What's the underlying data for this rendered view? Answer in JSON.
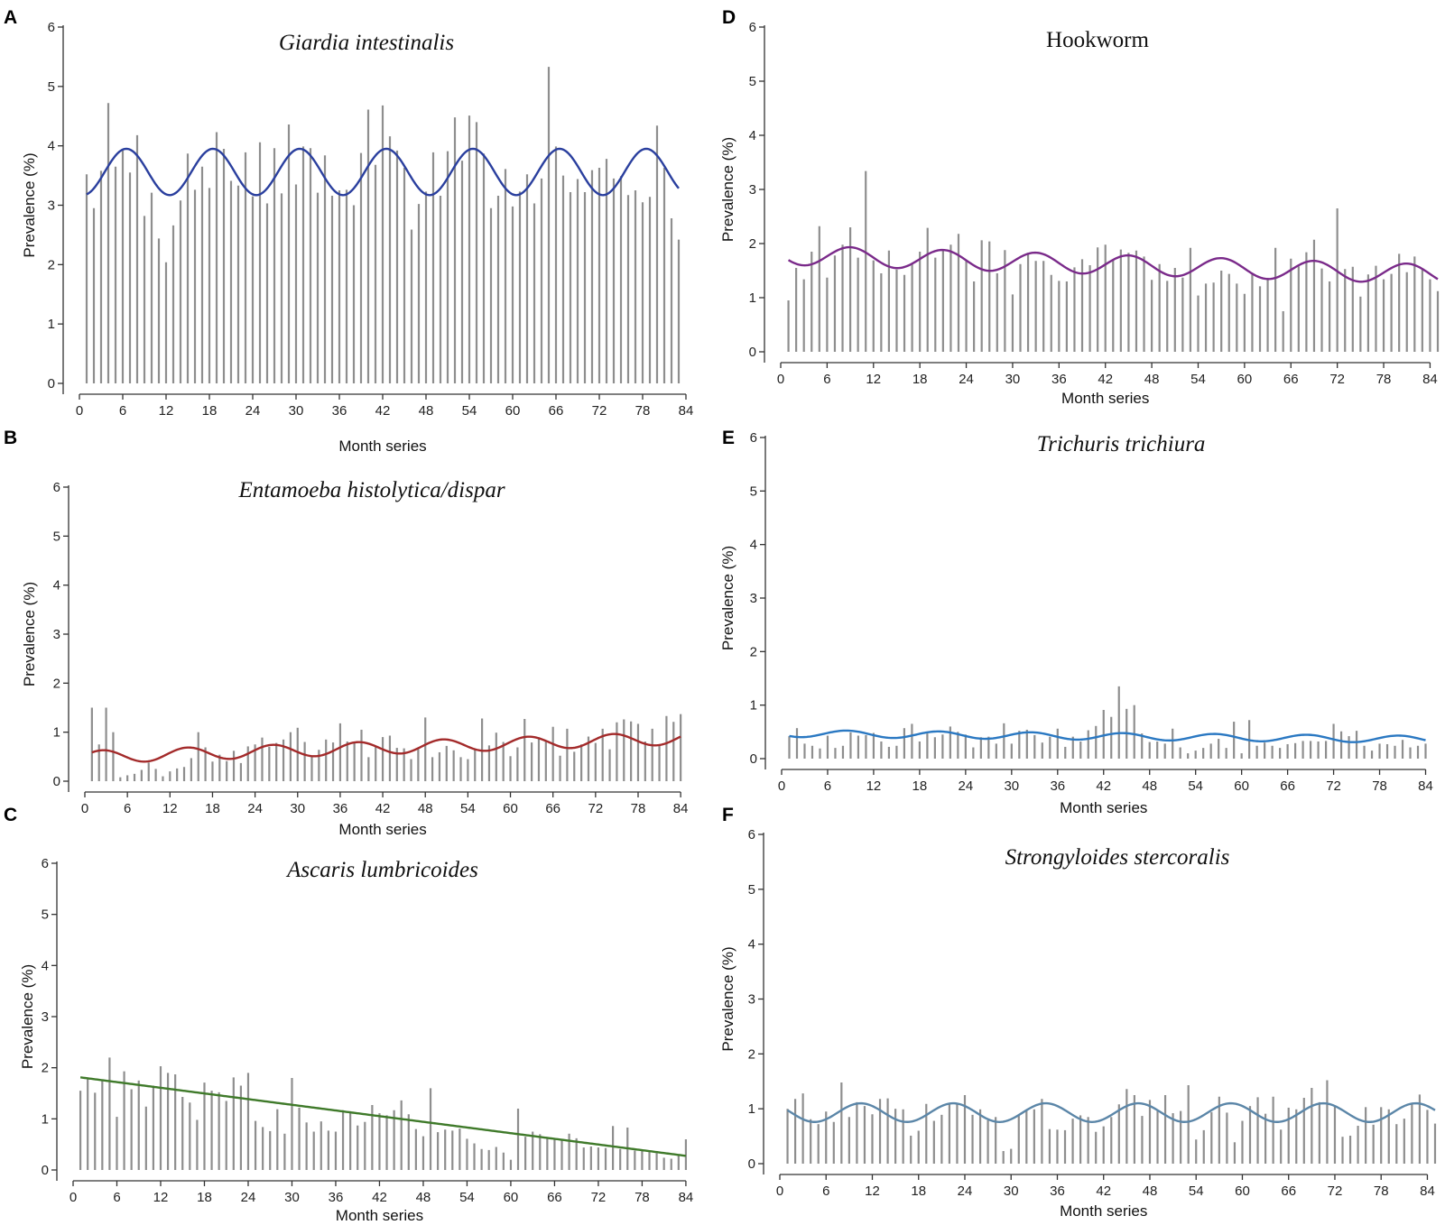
{
  "figure": {
    "panel_letters": [
      "A",
      "B",
      "C",
      "D",
      "E",
      "F"
    ]
  },
  "chart_data": [
    {
      "id": "A",
      "type": "bar",
      "title": "Giardia intestinalis",
      "title_italic": true,
      "xlabel": "Month series",
      "ylabel": "Prevalence (%)",
      "xlim": [
        0,
        85
      ],
      "ylim": [
        0,
        6
      ],
      "xticks": [
        0,
        6,
        12,
        18,
        24,
        30,
        36,
        42,
        48,
        54,
        60,
        66,
        72,
        78,
        84
      ],
      "yticks": [
        0,
        1,
        2,
        3,
        4,
        5,
        6
      ],
      "fit_color": "#2a3f9e",
      "fit": {
        "kind": "seasonal",
        "a": 3.56,
        "b": 0.0,
        "amp": 0.39,
        "period": 12,
        "peak": 6.5
      },
      "values": [
        3.52,
        2.95,
        3.58,
        4.72,
        3.65,
        3.92,
        3.55,
        4.18,
        2.82,
        3.21,
        2.44,
        2.04,
        2.66,
        3.08,
        3.87,
        3.26,
        3.65,
        3.29,
        4.23,
        3.95,
        3.41,
        3.33,
        3.89,
        3.15,
        4.06,
        3.03,
        3.96,
        3.2,
        4.36,
        3.35,
        3.99,
        3.96,
        3.21,
        3.84,
        3.16,
        3.25,
        3.26,
        3.0,
        3.88,
        4.61,
        3.68,
        4.68,
        4.16,
        3.92,
        3.63,
        2.59,
        3.02,
        3.23,
        3.89,
        3.16,
        3.91,
        4.48,
        3.75,
        4.51,
        4.4,
        3.87,
        2.95,
        3.16,
        3.61,
        2.98,
        3.23,
        3.52,
        3.03,
        3.45,
        5.33,
        3.99,
        3.5,
        3.22,
        3.44,
        3.22,
        3.59,
        3.63,
        3.78,
        3.45,
        3.49,
        3.17,
        3.25,
        3.05,
        3.14,
        4.34,
        3.63,
        2.78,
        2.42
      ]
    },
    {
      "id": "B",
      "type": "bar",
      "title": "Entamoeba histolytica/dispar",
      "title_italic": true,
      "xlabel": "Month series",
      "ylabel": "Prevalence (%)",
      "xlim": [
        0,
        85
      ],
      "ylim": [
        0,
        6
      ],
      "xticks": [
        0,
        6,
        12,
        18,
        24,
        30,
        36,
        42,
        48,
        54,
        60,
        66,
        72,
        78,
        84
      ],
      "yticks": [
        0,
        1,
        2,
        3,
        4,
        5,
        6
      ],
      "fit_color": "#a32a2a",
      "fit": {
        "kind": "seasonal",
        "a": 0.49,
        "b": 0.0046,
        "amp": 0.13,
        "period": 12,
        "peak": 2.5
      },
      "values": [
        1.5,
        0.75,
        1.5,
        1.0,
        0.08,
        0.12,
        0.15,
        0.23,
        0.38,
        0.25,
        0.1,
        0.2,
        0.26,
        0.29,
        0.47,
        1.0,
        0.69,
        0.4,
        0.54,
        0.41,
        0.62,
        0.37,
        0.71,
        0.75,
        0.89,
        0.7,
        0.78,
        0.85,
        1.0,
        1.09,
        0.8,
        0.5,
        0.64,
        0.85,
        0.79,
        1.18,
        0.81,
        0.81,
        1.05,
        0.49,
        0.72,
        0.9,
        0.93,
        0.68,
        0.67,
        0.45,
        0.67,
        1.3,
        0.49,
        0.59,
        0.72,
        0.63,
        0.49,
        0.45,
        0.67,
        1.28,
        0.73,
        0.99,
        0.8,
        0.51,
        0.69,
        1.27,
        0.79,
        0.88,
        0.82,
        1.11,
        0.52,
        1.07,
        0.6,
        0.75,
        0.91,
        0.78,
        1.07,
        0.65,
        1.2,
        1.26,
        1.22,
        1.17,
        0.81,
        1.07,
        0.72,
        1.33,
        1.21,
        1.37
      ]
    },
    {
      "id": "C",
      "type": "bar",
      "title": "Ascaris lumbricoides",
      "title_italic": true,
      "xlabel": "Month series",
      "ylabel": "Prevalence (%)",
      "xlim": [
        0,
        85
      ],
      "ylim": [
        0,
        6
      ],
      "xticks": [
        0,
        6,
        12,
        18,
        24,
        30,
        36,
        42,
        48,
        54,
        60,
        66,
        72,
        78,
        84
      ],
      "yticks": [
        0,
        1,
        2,
        3,
        4,
        5,
        6
      ],
      "fit_color": "#3f7a2a",
      "fit": {
        "kind": "linear",
        "a": 1.83,
        "b": -0.0185,
        "amp": 0.0,
        "period": 12,
        "peak": 0
      },
      "values": [
        1.55,
        1.8,
        1.51,
        1.75,
        2.2,
        1.04,
        1.93,
        1.58,
        1.75,
        1.24,
        1.65,
        2.03,
        1.9,
        1.87,
        1.43,
        1.32,
        0.98,
        1.71,
        1.55,
        1.52,
        1.35,
        1.81,
        1.65,
        1.9,
        0.96,
        0.84,
        0.76,
        1.19,
        0.71,
        1.8,
        1.22,
        0.93,
        0.75,
        0.95,
        0.77,
        0.75,
        1.17,
        1.15,
        0.87,
        0.94,
        1.27,
        1.11,
        1.07,
        1.17,
        1.36,
        1.09,
        0.8,
        0.66,
        1.6,
        0.74,
        0.79,
        0.77,
        0.81,
        0.61,
        0.52,
        0.41,
        0.39,
        0.45,
        0.34,
        0.2,
        1.2,
        0.65,
        0.75,
        0.7,
        0.63,
        0.62,
        0.61,
        0.71,
        0.62,
        0.44,
        0.46,
        0.44,
        0.43,
        0.86,
        0.41,
        0.83,
        0.38,
        0.38,
        0.35,
        0.33,
        0.24,
        0.22,
        0.3,
        0.6
      ]
    },
    {
      "id": "D",
      "type": "bar",
      "title": "Hookworm",
      "title_italic": false,
      "xlabel": "Month series",
      "ylabel": "Prevalence (%)",
      "xlim": [
        0,
        85
      ],
      "ylim": [
        0,
        6
      ],
      "xticks": [
        0,
        6,
        12,
        18,
        24,
        30,
        36,
        42,
        48,
        54,
        60,
        66,
        72,
        78,
        84
      ],
      "yticks": [
        0,
        1,
        2,
        3,
        4,
        5,
        6
      ],
      "fit_color": "#7a2a8a",
      "fit": {
        "kind": "seasonal",
        "a": 1.79,
        "b": -0.0042,
        "amp": 0.18,
        "period": 12,
        "peak": 9
      },
      "values": [
        0.95,
        1.55,
        1.34,
        1.85,
        2.32,
        1.37,
        1.78,
        1.98,
        2.3,
        1.74,
        3.34,
        1.69,
        1.45,
        1.87,
        1.52,
        1.42,
        1.62,
        1.85,
        2.29,
        1.74,
        1.87,
        1.98,
        2.18,
        1.69,
        1.3,
        2.06,
        2.04,
        1.45,
        1.88,
        1.06,
        1.62,
        1.83,
        1.68,
        1.68,
        1.42,
        1.31,
        1.3,
        1.56,
        1.71,
        1.6,
        1.93,
        1.98,
        1.7,
        1.89,
        1.83,
        1.87,
        1.76,
        1.33,
        1.62,
        1.31,
        1.55,
        1.37,
        1.92,
        1.04,
        1.26,
        1.28,
        1.5,
        1.44,
        1.26,
        1.07,
        1.43,
        1.21,
        1.34,
        1.92,
        0.75,
        1.72,
        1.58,
        1.84,
        2.07,
        1.54,
        1.3,
        2.65,
        1.53,
        1.57,
        1.02,
        1.43,
        1.59,
        1.34,
        1.44,
        1.81,
        1.47,
        1.76,
        1.52,
        1.34,
        1.12
      ]
    },
    {
      "id": "E",
      "type": "bar",
      "title": "Trichuris trichiura",
      "title_italic": true,
      "xlabel": "Month series",
      "ylabel": "Prevalence (%)",
      "xlim": [
        0,
        85
      ],
      "ylim": [
        0,
        6
      ],
      "xticks": [
        0,
        6,
        12,
        18,
        24,
        30,
        36,
        42,
        48,
        54,
        60,
        66,
        72,
        78,
        84
      ],
      "yticks": [
        0,
        1,
        2,
        3,
        4,
        5,
        6
      ],
      "fit_color": "#2a78c2",
      "fit": {
        "kind": "seasonal",
        "a": 0.47,
        "b": -0.0013,
        "amp": 0.065,
        "period": 12,
        "peak": 8.5
      },
      "values": [
        0.42,
        0.57,
        0.28,
        0.24,
        0.19,
        0.43,
        0.2,
        0.24,
        0.49,
        0.43,
        0.44,
        0.48,
        0.32,
        0.22,
        0.24,
        0.57,
        0.65,
        0.32,
        0.47,
        0.4,
        0.45,
        0.6,
        0.5,
        0.45,
        0.21,
        0.4,
        0.41,
        0.28,
        0.66,
        0.28,
        0.52,
        0.54,
        0.44,
        0.3,
        0.41,
        0.56,
        0.22,
        0.41,
        0.32,
        0.53,
        0.61,
        0.91,
        0.78,
        1.35,
        0.93,
        1.0,
        0.47,
        0.31,
        0.32,
        0.28,
        0.56,
        0.21,
        0.1,
        0.15,
        0.2,
        0.28,
        0.37,
        0.2,
        0.69,
        0.1,
        0.72,
        0.24,
        0.3,
        0.24,
        0.2,
        0.27,
        0.29,
        0.33,
        0.33,
        0.32,
        0.33,
        0.65,
        0.51,
        0.42,
        0.52,
        0.24,
        0.15,
        0.28,
        0.27,
        0.24,
        0.35,
        0.21,
        0.24,
        0.28
      ]
    },
    {
      "id": "F",
      "type": "bar",
      "title": "Strongyloides stercoralis",
      "title_italic": true,
      "xlabel": "Month series",
      "ylabel": "Prevalence (%)",
      "xlim": [
        0,
        85
      ],
      "ylim": [
        0,
        6
      ],
      "xticks": [
        0,
        6,
        12,
        18,
        24,
        30,
        36,
        42,
        48,
        54,
        60,
        66,
        72,
        78,
        84
      ],
      "yticks": [
        0,
        1,
        2,
        3,
        4,
        5,
        6
      ],
      "fit_color": "#5b86a8",
      "fit": {
        "kind": "seasonal",
        "a": 0.93,
        "b": 0.0,
        "amp": 0.17,
        "period": 12,
        "peak": 10.5
      },
      "values": [
        1.0,
        1.18,
        1.28,
        0.81,
        0.72,
        0.95,
        0.76,
        1.48,
        0.85,
        1.12,
        1.05,
        0.9,
        1.18,
        1.19,
        1.0,
        0.99,
        0.51,
        0.6,
        1.09,
        0.78,
        0.89,
        1.11,
        1.09,
        1.25,
        0.89,
        0.99,
        0.79,
        0.85,
        0.23,
        0.27,
        0.88,
        0.98,
        0.99,
        1.18,
        0.63,
        0.62,
        0.61,
        0.82,
        0.88,
        0.85,
        0.58,
        0.68,
        0.85,
        1.08,
        1.36,
        1.25,
        0.87,
        1.16,
        0.98,
        1.25,
        0.92,
        0.96,
        1.43,
        0.44,
        0.61,
        0.94,
        1.22,
        0.93,
        0.39,
        0.78,
        1.05,
        1.21,
        0.91,
        1.22,
        0.62,
        1.02,
        0.99,
        1.2,
        1.38,
        1.12,
        1.52,
        1.05,
        0.49,
        0.51,
        0.69,
        1.03,
        0.71,
        1.03,
        0.99,
        0.72,
        0.82,
        1.1,
        1.26,
        0.98,
        0.73
      ]
    }
  ]
}
